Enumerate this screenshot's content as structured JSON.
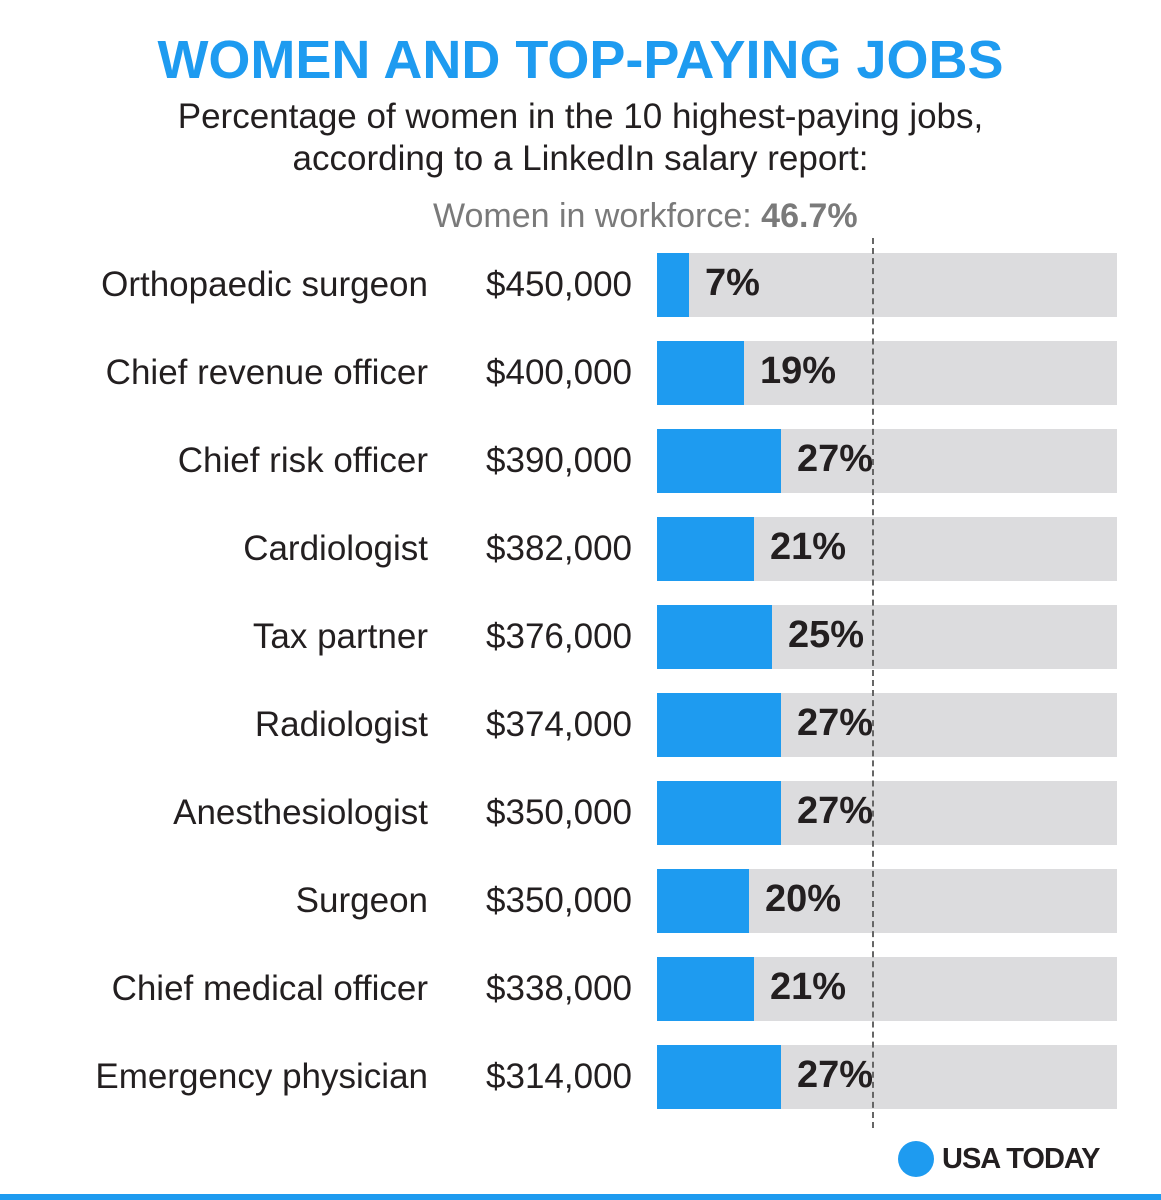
{
  "title": "WOMEN AND TOP-PAYING JOBS",
  "subtitle_line1": "Percentage of women in the 10 highest-paying jobs,",
  "subtitle_line2": "according to a LinkedIn salary report:",
  "reference": {
    "label": "Women in workforce: ",
    "value": 46.7,
    "value_label": "46.7%"
  },
  "brand": "USA TODAY",
  "colors": {
    "accent": "#1e9bf0",
    "track": "#dcdcde",
    "text": "#231f20",
    "muted": "#7a7a7a"
  },
  "chart_data": {
    "type": "bar",
    "orientation": "horizontal",
    "title": "WOMEN AND TOP-PAYING JOBS",
    "subtitle": "Percentage of women in the 10 highest-paying jobs, according to a LinkedIn salary report:",
    "xlim": [
      0,
      100
    ],
    "reference_line": {
      "value": 46.7,
      "label": "Women in workforce: 46.7%"
    },
    "categories": [
      "Orthopaedic surgeon",
      "Chief revenue officer",
      "Chief risk officer",
      "Cardiologist",
      "Tax partner",
      "Radiologist",
      "Anesthesiologist",
      "Surgeon",
      "Chief medical officer",
      "Emergency physician"
    ],
    "salaries": [
      "$450,000",
      "$400,000",
      "$390,000",
      "$382,000",
      "$376,000",
      "$374,000",
      "$350,000",
      "$350,000",
      "$338,000",
      "$314,000"
    ],
    "values": [
      7,
      19,
      27,
      21,
      25,
      27,
      27,
      20,
      21,
      27
    ],
    "value_labels": [
      "7%",
      "19%",
      "27%",
      "21%",
      "25%",
      "27%",
      "27%",
      "20%",
      "21%",
      "27%"
    ]
  }
}
